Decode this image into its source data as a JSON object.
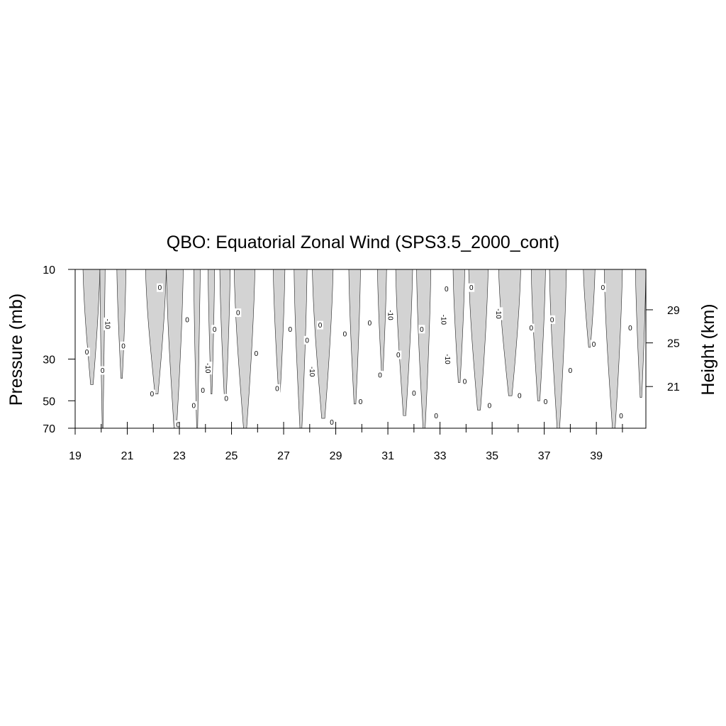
{
  "chart_data": {
    "type": "area",
    "title": "QBO: Equatorial Zonal Wind (SPS3.5_2000_cont)",
    "ylabel": "Pressure (mb)",
    "ylabel_right": "Height (km)",
    "xlabel": "",
    "xlim": [
      19,
      40.9
    ],
    "y_scale": "log",
    "ylim": [
      70,
      10
    ],
    "x_ticks": [
      "19",
      "21",
      "23",
      "25",
      "27",
      "29",
      "31",
      "33",
      "35",
      "37",
      "39"
    ],
    "x_tick_values": [
      19,
      21,
      23,
      25,
      27,
      29,
      31,
      33,
      35,
      37,
      39
    ],
    "y_ticks": [
      "10",
      "30",
      "50",
      "70"
    ],
    "y_tick_values": [
      10,
      30,
      50,
      70
    ],
    "y_right_ticks": [
      "29",
      "25",
      "21"
    ],
    "y_right_tick_values": [
      16.4,
      24.6,
      42.0
    ],
    "shading": "negative zonal wind (easterly) shaded gray",
    "contour_levels": [
      "-10",
      "0"
    ],
    "easterly_regions": [
      {
        "x_start": 19.3,
        "x_end": 19.95,
        "bottom_pressure": 41
      },
      {
        "x_start": 19.95,
        "x_end": 20.15,
        "bottom_pressure": 70
      },
      {
        "x_start": 20.6,
        "x_end": 20.95,
        "bottom_pressure": 38
      },
      {
        "x_start": 21.7,
        "x_end": 22.5,
        "bottom_pressure": 46
      },
      {
        "x_start": 22.5,
        "x_end": 23.15,
        "bottom_pressure": 70
      },
      {
        "x_start": 23.55,
        "x_end": 23.8,
        "bottom_pressure": 70
      },
      {
        "x_start": 24.1,
        "x_end": 24.35,
        "bottom_pressure": 46
      },
      {
        "x_start": 24.55,
        "x_end": 24.95,
        "bottom_pressure": 50
      },
      {
        "x_start": 25.1,
        "x_end": 25.9,
        "bottom_pressure": 70
      },
      {
        "x_start": 26.6,
        "x_end": 27.05,
        "bottom_pressure": 45
      },
      {
        "x_start": 27.4,
        "x_end": 27.9,
        "bottom_pressure": 70
      },
      {
        "x_start": 28.1,
        "x_end": 28.9,
        "bottom_pressure": 62
      },
      {
        "x_start": 29.5,
        "x_end": 29.95,
        "bottom_pressure": 52
      },
      {
        "x_start": 30.6,
        "x_end": 30.95,
        "bottom_pressure": 36
      },
      {
        "x_start": 31.3,
        "x_end": 31.95,
        "bottom_pressure": 60
      },
      {
        "x_start": 32.1,
        "x_end": 32.65,
        "bottom_pressure": 70
      },
      {
        "x_start": 33.5,
        "x_end": 33.95,
        "bottom_pressure": 40
      },
      {
        "x_start": 34.1,
        "x_end": 34.85,
        "bottom_pressure": 56
      },
      {
        "x_start": 35.25,
        "x_end": 36.1,
        "bottom_pressure": 47
      },
      {
        "x_start": 36.5,
        "x_end": 37.05,
        "bottom_pressure": 50
      },
      {
        "x_start": 37.2,
        "x_end": 37.85,
        "bottom_pressure": 70
      },
      {
        "x_start": 38.5,
        "x_end": 38.95,
        "bottom_pressure": 26
      },
      {
        "x_start": 39.3,
        "x_end": 40.0,
        "bottom_pressure": 70
      },
      {
        "x_start": 40.5,
        "x_end": 40.9,
        "bottom_pressure": 48
      }
    ],
    "contour_labels": [
      {
        "text": "0",
        "x": 19.45,
        "p": 27.5
      },
      {
        "text": "0",
        "x": 20.05,
        "p": 34.5
      },
      {
        "text": "-10",
        "x": 20.25,
        "p": 19.5
      },
      {
        "text": "0",
        "x": 20.85,
        "p": 25.5
      },
      {
        "text": "0",
        "x": 21.95,
        "p": 46
      },
      {
        "text": "0",
        "x": 22.25,
        "p": 12.5
      },
      {
        "text": "0",
        "x": 22.95,
        "p": 67
      },
      {
        "text": "0",
        "x": 23.3,
        "p": 18.5
      },
      {
        "text": "0",
        "x": 23.55,
        "p": 53
      },
      {
        "text": "0",
        "x": 23.9,
        "p": 44
      },
      {
        "text": "-10",
        "x": 24.1,
        "p": 33.5
      },
      {
        "text": "0",
        "x": 24.35,
        "p": 20.8
      },
      {
        "text": "0",
        "x": 24.8,
        "p": 48.5
      },
      {
        "text": "0",
        "x": 25.25,
        "p": 17
      },
      {
        "text": "0",
        "x": 25.95,
        "p": 28
      },
      {
        "text": "0",
        "x": 26.75,
        "p": 43
      },
      {
        "text": "0",
        "x": 27.25,
        "p": 20.8
      },
      {
        "text": "0",
        "x": 27.9,
        "p": 23.8
      },
      {
        "text": "-10",
        "x": 28.1,
        "p": 35
      },
      {
        "text": "0",
        "x": 28.4,
        "p": 19.8
      },
      {
        "text": "0",
        "x": 28.85,
        "p": 65
      },
      {
        "text": "0",
        "x": 29.35,
        "p": 22
      },
      {
        "text": "0",
        "x": 29.95,
        "p": 50.5
      },
      {
        "text": "0",
        "x": 30.3,
        "p": 19.3
      },
      {
        "text": "0",
        "x": 30.7,
        "p": 36.5
      },
      {
        "text": "-10",
        "x": 31.1,
        "p": 17.5
      },
      {
        "text": "0",
        "x": 31.4,
        "p": 28.5
      },
      {
        "text": "0",
        "x": 32.0,
        "p": 45.5
      },
      {
        "text": "0",
        "x": 32.3,
        "p": 20.8
      },
      {
        "text": "0",
        "x": 32.85,
        "p": 60
      },
      {
        "text": "-10",
        "x": 33.15,
        "p": 18.5
      },
      {
        "text": "-10",
        "x": 33.3,
        "p": 30
      },
      {
        "text": "0",
        "x": 33.25,
        "p": 12.7
      },
      {
        "text": "0",
        "x": 33.95,
        "p": 39.5
      },
      {
        "text": "0",
        "x": 34.2,
        "p": 12.5
      },
      {
        "text": "0",
        "x": 34.9,
        "p": 53
      },
      {
        "text": "-10",
        "x": 35.25,
        "p": 17.2
      },
      {
        "text": "0",
        "x": 36.05,
        "p": 47
      },
      {
        "text": "0",
        "x": 36.5,
        "p": 20.5
      },
      {
        "text": "0",
        "x": 37.05,
        "p": 50.5
      },
      {
        "text": "0",
        "x": 37.3,
        "p": 18.5
      },
      {
        "text": "0",
        "x": 38.0,
        "p": 34.5
      },
      {
        "text": "0",
        "x": 38.9,
        "p": 25
      },
      {
        "text": "0",
        "x": 39.25,
        "p": 12.5
      },
      {
        "text": "0",
        "x": 39.95,
        "p": 60
      },
      {
        "text": "0",
        "x": 40.3,
        "p": 20.5
      }
    ],
    "colors": {
      "shading": "#d3d3d3",
      "contour": "#222222"
    }
  }
}
